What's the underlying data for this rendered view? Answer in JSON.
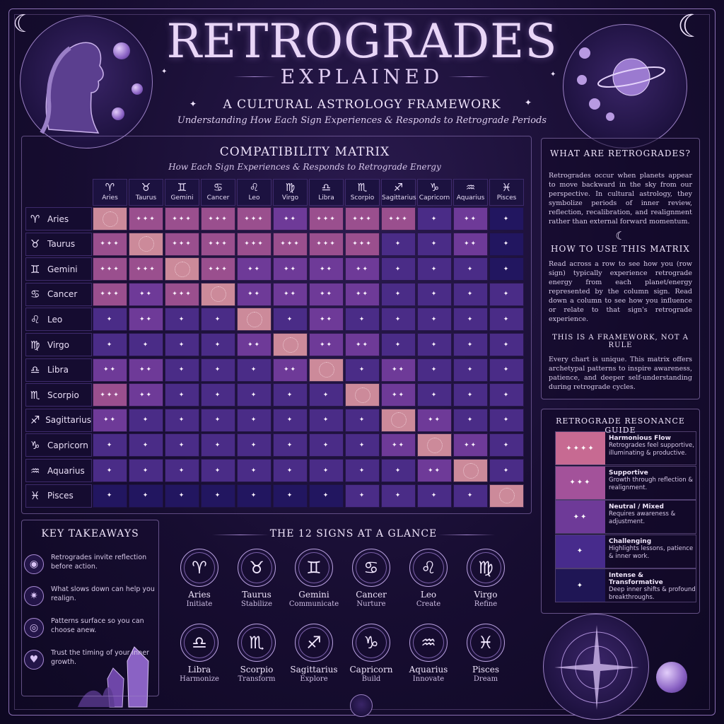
{
  "header": {
    "title": "RETROGRADES",
    "subtitle": "EXPLAINED",
    "tagline": "A CULTURAL ASTROLOGY FRAMEWORK",
    "tagline_sub": "Understanding How Each Sign Experiences & Responds to Retrograde Periods"
  },
  "matrix": {
    "title": "COMPATIBILITY MATRIX",
    "subtitle": "How Each Sign Experiences & Responds to Retrograde Energy",
    "signs": [
      {
        "glyph": "♈",
        "name": "Aries"
      },
      {
        "glyph": "♉",
        "name": "Taurus"
      },
      {
        "glyph": "♊",
        "name": "Gemini"
      },
      {
        "glyph": "♋",
        "name": "Cancer"
      },
      {
        "glyph": "♌",
        "name": "Leo"
      },
      {
        "glyph": "♍",
        "name": "Virgo"
      },
      {
        "glyph": "♎",
        "name": "Libra"
      },
      {
        "glyph": "♏",
        "name": "Scorpio"
      },
      {
        "glyph": "♐",
        "name": "Sagittarius"
      },
      {
        "glyph": "♑",
        "name": "Capricorn"
      },
      {
        "glyph": "♒",
        "name": "Aquarius"
      },
      {
        "glyph": "♓",
        "name": "Pisces"
      }
    ],
    "levels": [
      [
        0,
        4,
        4,
        4,
        4,
        3,
        4,
        4,
        4,
        2,
        3,
        1
      ],
      [
        4,
        0,
        4,
        4,
        4,
        4,
        4,
        4,
        2,
        2,
        3,
        1
      ],
      [
        4,
        4,
        0,
        4,
        3,
        3,
        3,
        3,
        2,
        2,
        2,
        1
      ],
      [
        4,
        3,
        4,
        0,
        3,
        3,
        3,
        3,
        2,
        2,
        2,
        2
      ],
      [
        2,
        3,
        2,
        2,
        0,
        2,
        3,
        2,
        2,
        2,
        2,
        2
      ],
      [
        2,
        2,
        2,
        2,
        3,
        0,
        3,
        3,
        2,
        2,
        2,
        2
      ],
      [
        3,
        3,
        2,
        2,
        2,
        3,
        0,
        2,
        3,
        2,
        2,
        2
      ],
      [
        4,
        3,
        2,
        2,
        2,
        2,
        2,
        0,
        3,
        2,
        2,
        2
      ],
      [
        3,
        2,
        2,
        2,
        2,
        2,
        2,
        2,
        0,
        3,
        2,
        2
      ],
      [
        2,
        2,
        2,
        2,
        2,
        2,
        2,
        2,
        3,
        0,
        3,
        2
      ],
      [
        2,
        2,
        2,
        2,
        2,
        2,
        2,
        2,
        2,
        3,
        0,
        2
      ],
      [
        1,
        1,
        1,
        1,
        1,
        1,
        1,
        2,
        2,
        2,
        2,
        0
      ]
    ]
  },
  "what": {
    "title": "WHAT ARE RETROGRADES?",
    "body": "Retrogrades occur when planets appear to move backward in the sky from our perspective. In cultural astrology, they symbolize periods of inner review, reflection, recalibration, and realignment rather than external forward momentum."
  },
  "how": {
    "title": "HOW TO USE THIS MATRIX",
    "body": "Read across a row to see how you (row sign) typically experience retrograde energy from each planet/energy represented by the column sign. Read down a column to see how you influence or relate to that sign's retrograde experience."
  },
  "framework": {
    "title": "THIS IS A FRAMEWORK, NOT A RULE",
    "body": "Every chart is unique. This matrix offers archetypal patterns to inspire awareness, patience, and deeper self-understanding during retrograde cycles."
  },
  "guide": {
    "title": "RETROGRADE RESONANCE GUIDE",
    "items": [
      {
        "label": "Harmonious Flow",
        "desc": "Retrogrades feel supportive, illuminating & productive.",
        "marks": "✦✦✦✦",
        "color": "#c76a92"
      },
      {
        "label": "Supportive",
        "desc": "Growth through reflection & realignment.",
        "marks": "✦✦✦",
        "color": "#a3529a"
      },
      {
        "label": "Neutral / Mixed",
        "desc": "Requires awareness & adjustment.",
        "marks": "✦✦",
        "color": "#6e3a98"
      },
      {
        "label": "Challenging",
        "desc": "Highlights lessons, patience & inner work.",
        "marks": "✦",
        "color": "#472b8c"
      },
      {
        "label": "Intense & Transformative",
        "desc": "Deep inner shifts & profound breakthroughs.",
        "marks": "✦",
        "color": "#1f1655"
      }
    ]
  },
  "takeaways": {
    "title": "KEY TAKEAWAYS",
    "items": [
      {
        "icon": "◉",
        "icon_name": "orb-icon",
        "text": "Retrogrades invite reflection before action."
      },
      {
        "icon": "✷",
        "icon_name": "compass-star-icon",
        "text": "What slows down can help you realign."
      },
      {
        "icon": "◎",
        "icon_name": "spiral-icon",
        "text": "Patterns surface so you can choose anew."
      },
      {
        "icon": "♥",
        "icon_name": "heart-icon",
        "text": "Trust the timing of your inner growth."
      }
    ]
  },
  "glance": {
    "title": "THE 12 SIGNS AT A GLANCE",
    "signs": [
      {
        "glyph": "♈",
        "name": "Aries",
        "keyword": "Initiate"
      },
      {
        "glyph": "♉",
        "name": "Taurus",
        "keyword": "Stabilize"
      },
      {
        "glyph": "♊",
        "name": "Gemini",
        "keyword": "Communicate"
      },
      {
        "glyph": "♋",
        "name": "Cancer",
        "keyword": "Nurture"
      },
      {
        "glyph": "♌",
        "name": "Leo",
        "keyword": "Create"
      },
      {
        "glyph": "♍",
        "name": "Virgo",
        "keyword": "Refine"
      },
      {
        "glyph": "♎",
        "name": "Libra",
        "keyword": "Harmonize"
      },
      {
        "glyph": "♏",
        "name": "Scorpio",
        "keyword": "Transform"
      },
      {
        "glyph": "♐",
        "name": "Sagittarius",
        "keyword": "Explore"
      },
      {
        "glyph": "♑",
        "name": "Capricorn",
        "keyword": "Build"
      },
      {
        "glyph": "♒",
        "name": "Aquarius",
        "keyword": "Innovate"
      },
      {
        "glyph": "♓",
        "name": "Pisces",
        "keyword": "Dream"
      }
    ]
  },
  "colors": {
    "background": "#170d31",
    "accent": "#a98bd4",
    "self_cell": "#cc8a9a"
  }
}
